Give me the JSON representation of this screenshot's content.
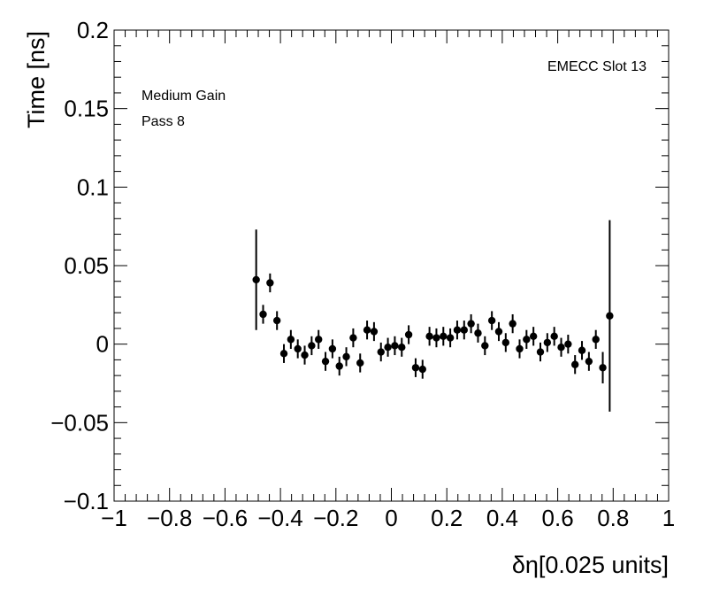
{
  "chart_data": {
    "type": "scatter",
    "title": "",
    "xlabel": "δη[0.025 units]",
    "ylabel": "Time [ns]",
    "xlim": [
      -1,
      1
    ],
    "ylim": [
      -0.1,
      0.2
    ],
    "x_ticks": [
      "−1",
      "−0.8",
      "−0.6",
      "−0.4",
      "−0.2",
      "0",
      "0.2",
      "0.4",
      "0.6",
      "0.8",
      "1"
    ],
    "y_ticks": [
      "−0.1",
      "−0.05",
      "0",
      "0.05",
      "0.1",
      "0.15",
      "0.2"
    ],
    "annotations": {
      "top_right": "EMECC Slot 13",
      "line1": "Medium Gain",
      "line2": "Pass 8"
    },
    "grid": false,
    "series": [
      {
        "marker_color": "#000000",
        "points": [
          {
            "x": -0.4875,
            "y": 0.041,
            "err": 0.032
          },
          {
            "x": -0.4625,
            "y": 0.019,
            "err": 0.006
          },
          {
            "x": -0.4375,
            "y": 0.039,
            "err": 0.006
          },
          {
            "x": -0.4125,
            "y": 0.015,
            "err": 0.006
          },
          {
            "x": -0.3875,
            "y": -0.006,
            "err": 0.006
          },
          {
            "x": -0.3625,
            "y": 0.003,
            "err": 0.006
          },
          {
            "x": -0.3375,
            "y": -0.003,
            "err": 0.006
          },
          {
            "x": -0.3125,
            "y": -0.007,
            "err": 0.006
          },
          {
            "x": -0.2875,
            "y": -0.001,
            "err": 0.006
          },
          {
            "x": -0.2625,
            "y": 0.003,
            "err": 0.006
          },
          {
            "x": -0.2375,
            "y": -0.011,
            "err": 0.006
          },
          {
            "x": -0.2125,
            "y": -0.003,
            "err": 0.006
          },
          {
            "x": -0.1875,
            "y": -0.014,
            "err": 0.006
          },
          {
            "x": -0.1625,
            "y": -0.008,
            "err": 0.006
          },
          {
            "x": -0.1375,
            "y": 0.004,
            "err": 0.006
          },
          {
            "x": -0.1125,
            "y": -0.012,
            "err": 0.006
          },
          {
            "x": -0.0875,
            "y": 0.009,
            "err": 0.006
          },
          {
            "x": -0.0625,
            "y": 0.008,
            "err": 0.006
          },
          {
            "x": -0.0375,
            "y": -0.005,
            "err": 0.006
          },
          {
            "x": -0.0125,
            "y": -0.002,
            "err": 0.006
          },
          {
            "x": 0.0125,
            "y": -0.001,
            "err": 0.006
          },
          {
            "x": 0.0375,
            "y": -0.002,
            "err": 0.006
          },
          {
            "x": 0.0625,
            "y": 0.006,
            "err": 0.006
          },
          {
            "x": 0.0875,
            "y": -0.015,
            "err": 0.006
          },
          {
            "x": 0.1125,
            "y": -0.016,
            "err": 0.006
          },
          {
            "x": 0.1375,
            "y": 0.005,
            "err": 0.006
          },
          {
            "x": 0.1625,
            "y": 0.004,
            "err": 0.006
          },
          {
            "x": 0.1875,
            "y": 0.005,
            "err": 0.006
          },
          {
            "x": 0.2125,
            "y": 0.004,
            "err": 0.006
          },
          {
            "x": 0.2375,
            "y": 0.009,
            "err": 0.006
          },
          {
            "x": 0.2625,
            "y": 0.009,
            "err": 0.006
          },
          {
            "x": 0.2875,
            "y": 0.013,
            "err": 0.006
          },
          {
            "x": 0.3125,
            "y": 0.007,
            "err": 0.006
          },
          {
            "x": 0.3375,
            "y": -0.001,
            "err": 0.006
          },
          {
            "x": 0.3625,
            "y": 0.015,
            "err": 0.006
          },
          {
            "x": 0.3875,
            "y": 0.008,
            "err": 0.006
          },
          {
            "x": 0.4125,
            "y": 0.001,
            "err": 0.006
          },
          {
            "x": 0.4375,
            "y": 0.013,
            "err": 0.006
          },
          {
            "x": 0.4625,
            "y": -0.003,
            "err": 0.006
          },
          {
            "x": 0.4875,
            "y": 0.003,
            "err": 0.006
          },
          {
            "x": 0.5125,
            "y": 0.005,
            "err": 0.006
          },
          {
            "x": 0.5375,
            "y": -0.005,
            "err": 0.006
          },
          {
            "x": 0.5625,
            "y": 0.001,
            "err": 0.006
          },
          {
            "x": 0.5875,
            "y": 0.005,
            "err": 0.006
          },
          {
            "x": 0.6125,
            "y": -0.002,
            "err": 0.006
          },
          {
            "x": 0.6375,
            "y": 0.0,
            "err": 0.006
          },
          {
            "x": 0.6625,
            "y": -0.013,
            "err": 0.006
          },
          {
            "x": 0.6875,
            "y": -0.004,
            "err": 0.006
          },
          {
            "x": 0.7125,
            "y": -0.011,
            "err": 0.006
          },
          {
            "x": 0.7375,
            "y": 0.003,
            "err": 0.006
          },
          {
            "x": 0.7625,
            "y": -0.015,
            "err": 0.01
          },
          {
            "x": 0.7875,
            "y": 0.018,
            "err": 0.061
          }
        ]
      }
    ]
  }
}
